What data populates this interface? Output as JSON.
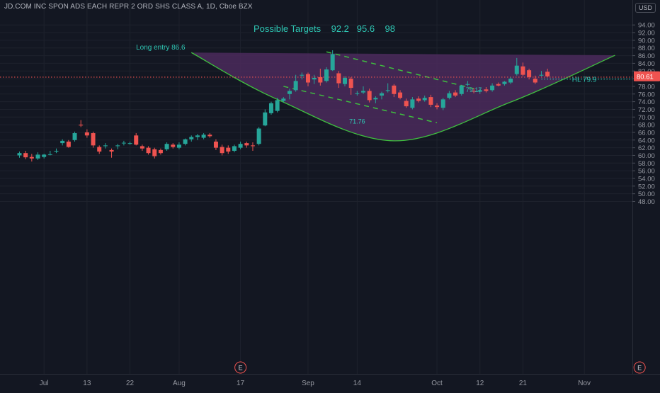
{
  "header": {
    "symbol_title": "JD.COM INC SPON ADS EACH REPR 2 ORD SHS CLASS A, 1D, Cboe BZX",
    "currency": "USD"
  },
  "colors": {
    "background": "#131722",
    "up": "#26a69a",
    "down": "#ef5350",
    "curve": "#3fbf3f",
    "fill": "#4b2a5c",
    "annotation": "#2ec7b4",
    "price_line": "#ef5350"
  },
  "chart_data": {
    "type": "candlestick",
    "title": "Possible Targets    92.2   95.6    98",
    "ylim": [
      47,
      97
    ],
    "y_ticks": [
      48,
      50,
      52,
      54,
      56,
      58,
      60,
      62,
      64,
      66,
      68,
      70,
      72,
      74,
      76,
      78,
      80,
      82,
      84,
      86,
      88,
      90,
      92,
      94
    ],
    "y_tick_labels": [
      "48.00",
      "50.00",
      "52.00",
      "54.00",
      "56.00",
      "58.00",
      "60.00",
      "62.00",
      "64.00",
      "66.00",
      "68.00",
      "70.00",
      "72.00",
      "74.00",
      "76.00",
      "78.00",
      "80.00",
      "82.00",
      "84.00",
      "86.00",
      "88.00",
      "90.00",
      "92.00",
      "94.00"
    ],
    "x_ticks": [
      {
        "label": "Jul",
        "date": "2020-07-01"
      },
      {
        "label": "13",
        "date": "2020-07-13"
      },
      {
        "label": "22",
        "date": "2020-07-22"
      },
      {
        "label": "Aug",
        "date": "2020-08-03"
      },
      {
        "label": "17",
        "date": "2020-08-17"
      },
      {
        "label": "Sep",
        "date": "2020-09-01"
      },
      {
        "label": "14",
        "date": "2020-09-14"
      },
      {
        "label": "Oct",
        "date": "2020-10-01"
      },
      {
        "label": "12",
        "date": "2020-10-12"
      },
      {
        "label": "21",
        "date": "2020-10-21"
      },
      {
        "label": "Nov",
        "date": "2020-11-02"
      }
    ],
    "candles": [
      {
        "date": "2020-06-25",
        "o": 60.0,
        "h": 61.0,
        "l": 59.4,
        "c": 60.6
      },
      {
        "date": "2020-06-26",
        "o": 60.6,
        "h": 61.2,
        "l": 59.0,
        "c": 59.5
      },
      {
        "date": "2020-06-29",
        "o": 59.6,
        "h": 60.4,
        "l": 58.4,
        "c": 59.2
      },
      {
        "date": "2020-06-30",
        "o": 59.2,
        "h": 60.8,
        "l": 58.8,
        "c": 60.2
      },
      {
        "date": "2020-07-01",
        "o": 59.6,
        "h": 60.4,
        "l": 59.2,
        "c": 60.2
      },
      {
        "date": "2020-07-02",
        "o": 60.2,
        "h": 61.2,
        "l": 60.0,
        "c": 60.3
      },
      {
        "date": "2020-07-06",
        "o": 61.0,
        "h": 61.8,
        "l": 60.6,
        "c": 61.2
      },
      {
        "date": "2020-07-07",
        "o": 63.2,
        "h": 64.2,
        "l": 62.6,
        "c": 63.8
      },
      {
        "date": "2020-07-08",
        "o": 63.6,
        "h": 64.0,
        "l": 62.0,
        "c": 62.2
      },
      {
        "date": "2020-07-09",
        "o": 64.0,
        "h": 66.2,
        "l": 63.6,
        "c": 65.8
      },
      {
        "date": "2020-07-10",
        "o": 68.0,
        "h": 69.2,
        "l": 67.4,
        "c": 67.8
      },
      {
        "date": "2020-07-13",
        "o": 66.0,
        "h": 66.8,
        "l": 64.6,
        "c": 65.2
      },
      {
        "date": "2020-07-14",
        "o": 65.8,
        "h": 66.2,
        "l": 62.0,
        "c": 62.6
      },
      {
        "date": "2020-07-15",
        "o": 62.2,
        "h": 62.6,
        "l": 60.4,
        "c": 61.0
      },
      {
        "date": "2020-07-16",
        "o": 62.4,
        "h": 63.2,
        "l": 61.8,
        "c": 62.6
      },
      {
        "date": "2020-07-17",
        "o": 61.4,
        "h": 61.8,
        "l": 59.4,
        "c": 61.0
      },
      {
        "date": "2020-07-20",
        "o": 62.4,
        "h": 63.0,
        "l": 61.6,
        "c": 62.6
      },
      {
        "date": "2020-07-21",
        "o": 63.2,
        "h": 63.8,
        "l": 62.6,
        "c": 63.3
      },
      {
        "date": "2020-07-22",
        "o": 63.0,
        "h": 63.6,
        "l": 62.8,
        "c": 63.2
      },
      {
        "date": "2020-07-23",
        "o": 65.2,
        "h": 65.8,
        "l": 62.6,
        "c": 62.8
      },
      {
        "date": "2020-07-24",
        "o": 62.4,
        "h": 62.8,
        "l": 61.2,
        "c": 61.8
      },
      {
        "date": "2020-07-27",
        "o": 62.0,
        "h": 62.4,
        "l": 60.2,
        "c": 60.6
      },
      {
        "date": "2020-07-28",
        "o": 61.6,
        "h": 62.0,
        "l": 59.2,
        "c": 59.8
      },
      {
        "date": "2020-07-29",
        "o": 61.4,
        "h": 61.8,
        "l": 60.2,
        "c": 60.6
      },
      {
        "date": "2020-07-30",
        "o": 61.6,
        "h": 63.4,
        "l": 61.2,
        "c": 63.0
      },
      {
        "date": "2020-07-31",
        "o": 62.8,
        "h": 63.2,
        "l": 61.8,
        "c": 62.2
      },
      {
        "date": "2020-08-03",
        "o": 62.0,
        "h": 63.4,
        "l": 61.6,
        "c": 62.8
      },
      {
        "date": "2020-08-04",
        "o": 63.0,
        "h": 64.4,
        "l": 62.6,
        "c": 64.2
      },
      {
        "date": "2020-08-05",
        "o": 64.2,
        "h": 65.2,
        "l": 63.6,
        "c": 64.8
      },
      {
        "date": "2020-08-06",
        "o": 64.8,
        "h": 65.6,
        "l": 64.0,
        "c": 65.2
      },
      {
        "date": "2020-08-07",
        "o": 64.6,
        "h": 65.8,
        "l": 64.2,
        "c": 65.4
      },
      {
        "date": "2020-08-10",
        "o": 65.4,
        "h": 65.8,
        "l": 64.6,
        "c": 65.0
      },
      {
        "date": "2020-08-11",
        "o": 63.6,
        "h": 64.2,
        "l": 61.4,
        "c": 62.0
      },
      {
        "date": "2020-08-12",
        "o": 62.2,
        "h": 62.8,
        "l": 60.0,
        "c": 60.6
      },
      {
        "date": "2020-08-13",
        "o": 62.0,
        "h": 62.6,
        "l": 60.4,
        "c": 61.0
      },
      {
        "date": "2020-08-14",
        "o": 61.2,
        "h": 62.8,
        "l": 60.8,
        "c": 62.4
      },
      {
        "date": "2020-08-17",
        "o": 62.0,
        "h": 63.6,
        "l": 61.6,
        "c": 63.0
      },
      {
        "date": "2020-08-18",
        "o": 63.2,
        "h": 63.6,
        "l": 62.0,
        "c": 62.6
      },
      {
        "date": "2020-08-19",
        "o": 62.6,
        "h": 63.4,
        "l": 61.2,
        "c": 62.4
      },
      {
        "date": "2020-08-20",
        "o": 63.0,
        "h": 67.4,
        "l": 62.6,
        "c": 67.0
      },
      {
        "date": "2020-08-21",
        "o": 67.8,
        "h": 72.0,
        "l": 67.6,
        "c": 71.2
      },
      {
        "date": "2020-08-24",
        "o": 71.0,
        "h": 74.0,
        "l": 70.6,
        "c": 73.6
      },
      {
        "date": "2020-08-25",
        "o": 71.6,
        "h": 75.0,
        "l": 71.2,
        "c": 74.4
      },
      {
        "date": "2020-08-26",
        "o": 74.2,
        "h": 75.2,
        "l": 73.8,
        "c": 74.8
      },
      {
        "date": "2020-08-27",
        "o": 76.0,
        "h": 77.4,
        "l": 74.6,
        "c": 76.8
      },
      {
        "date": "2020-08-28",
        "o": 77.0,
        "h": 81.0,
        "l": 76.6,
        "c": 79.4
      },
      {
        "date": "2020-08-31",
        "o": 80.8,
        "h": 81.6,
        "l": 79.8,
        "c": 81.0
      },
      {
        "date": "2020-09-01",
        "o": 81.2,
        "h": 81.6,
        "l": 78.0,
        "c": 79.0
      },
      {
        "date": "2020-09-02",
        "o": 79.8,
        "h": 81.0,
        "l": 78.6,
        "c": 80.2
      },
      {
        "date": "2020-09-03",
        "o": 80.4,
        "h": 82.6,
        "l": 78.2,
        "c": 79.0
      },
      {
        "date": "2020-09-04",
        "o": 79.4,
        "h": 83.0,
        "l": 79.0,
        "c": 82.4
      },
      {
        "date": "2020-09-08",
        "o": 82.2,
        "h": 87.4,
        "l": 82.0,
        "c": 86.4
      },
      {
        "date": "2020-09-09",
        "o": 81.4,
        "h": 82.0,
        "l": 77.6,
        "c": 78.8
      },
      {
        "date": "2020-09-10",
        "o": 78.6,
        "h": 80.6,
        "l": 78.0,
        "c": 80.2
      },
      {
        "date": "2020-09-11",
        "o": 80.0,
        "h": 80.4,
        "l": 75.8,
        "c": 77.6
      },
      {
        "date": "2020-09-14",
        "o": 76.0,
        "h": 76.8,
        "l": 75.6,
        "c": 76.2
      },
      {
        "date": "2020-09-15",
        "o": 76.4,
        "h": 78.0,
        "l": 76.0,
        "c": 76.8
      },
      {
        "date": "2020-09-16",
        "o": 76.8,
        "h": 77.4,
        "l": 73.8,
        "c": 74.4
      },
      {
        "date": "2020-09-17",
        "o": 74.6,
        "h": 75.4,
        "l": 73.6,
        "c": 75.0
      },
      {
        "date": "2020-09-18",
        "o": 75.6,
        "h": 76.6,
        "l": 74.6,
        "c": 76.2
      },
      {
        "date": "2020-09-21",
        "o": 76.8,
        "h": 78.8,
        "l": 76.4,
        "c": 77.0
      },
      {
        "date": "2020-09-22",
        "o": 78.2,
        "h": 78.6,
        "l": 75.2,
        "c": 76.0
      },
      {
        "date": "2020-09-23",
        "o": 76.4,
        "h": 77.0,
        "l": 74.6,
        "c": 75.0
      },
      {
        "date": "2020-09-24",
        "o": 74.2,
        "h": 74.8,
        "l": 72.4,
        "c": 72.8
      },
      {
        "date": "2020-09-25",
        "o": 72.4,
        "h": 75.2,
        "l": 72.0,
        "c": 74.6
      },
      {
        "date": "2020-09-28",
        "o": 74.8,
        "h": 75.4,
        "l": 73.8,
        "c": 74.2
      },
      {
        "date": "2020-09-29",
        "o": 74.4,
        "h": 75.6,
        "l": 74.0,
        "c": 75.0
      },
      {
        "date": "2020-09-30",
        "o": 75.2,
        "h": 75.8,
        "l": 72.6,
        "c": 73.2
      },
      {
        "date": "2020-10-01",
        "o": 73.0,
        "h": 73.6,
        "l": 72.0,
        "c": 72.6
      },
      {
        "date": "2020-10-02",
        "o": 72.4,
        "h": 75.0,
        "l": 71.8,
        "c": 74.6
      },
      {
        "date": "2020-10-05",
        "o": 75.0,
        "h": 76.8,
        "l": 74.6,
        "c": 76.2
      },
      {
        "date": "2020-10-06",
        "o": 76.4,
        "h": 77.0,
        "l": 75.2,
        "c": 75.6
      },
      {
        "date": "2020-10-07",
        "o": 76.0,
        "h": 78.4,
        "l": 75.6,
        "c": 78.2
      },
      {
        "date": "2020-10-08",
        "o": 78.4,
        "h": 79.4,
        "l": 78.0,
        "c": 78.6
      },
      {
        "date": "2020-10-09",
        "o": 76.8,
        "h": 77.6,
        "l": 76.2,
        "c": 76.6
      },
      {
        "date": "2020-10-12",
        "o": 76.6,
        "h": 77.4,
        "l": 76.0,
        "c": 77.0
      },
      {
        "date": "2020-10-13",
        "o": 77.2,
        "h": 77.8,
        "l": 76.4,
        "c": 76.8
      },
      {
        "date": "2020-10-14",
        "o": 77.0,
        "h": 78.8,
        "l": 76.6,
        "c": 78.2
      },
      {
        "date": "2020-10-15",
        "o": 78.6,
        "h": 79.0,
        "l": 78.0,
        "c": 78.2
      },
      {
        "date": "2020-10-16",
        "o": 78.6,
        "h": 79.4,
        "l": 78.2,
        "c": 79.2
      },
      {
        "date": "2020-10-19",
        "o": 79.0,
        "h": 80.4,
        "l": 78.6,
        "c": 80.0
      },
      {
        "date": "2020-10-20",
        "o": 81.2,
        "h": 85.4,
        "l": 80.8,
        "c": 83.4
      },
      {
        "date": "2020-10-21",
        "o": 83.2,
        "h": 84.2,
        "l": 80.6,
        "c": 81.0
      },
      {
        "date": "2020-10-22",
        "o": 82.2,
        "h": 82.6,
        "l": 79.8,
        "c": 80.4
      },
      {
        "date": "2020-10-23",
        "o": 80.0,
        "h": 80.8,
        "l": 78.6,
        "c": 79.0
      },
      {
        "date": "2020-10-26",
        "o": 80.8,
        "h": 82.0,
        "l": 80.6,
        "c": 81.0
      },
      {
        "date": "2020-10-27",
        "o": 81.8,
        "h": 82.6,
        "l": 80.4,
        "c": 80.6
      }
    ],
    "bowl_curve": [
      {
        "date": "2020-08-05",
        "y": 86.8
      },
      {
        "date": "2020-08-25",
        "y": 74.6
      },
      {
        "date": "2020-09-22",
        "y": 63.8
      },
      {
        "date": "2020-10-19",
        "y": 73.9
      },
      {
        "date": "2020-11-09",
        "y": 86.1
      }
    ],
    "channel_upper": [
      {
        "date": "2020-09-04",
        "y": 87.0
      },
      {
        "date": "2020-10-09",
        "y": 77.4
      }
    ],
    "channel_lower": [
      {
        "date": "2020-08-26",
        "y": 78.0
      },
      {
        "date": "2020-10-01",
        "y": 68.5
      }
    ],
    "horizontal_lines": [
      {
        "y": 80.4,
        "style": "dotted",
        "color": "#ef5350"
      },
      {
        "y": 79.9,
        "style": "dotted",
        "color": "#2ec7b4",
        "from_date": "2020-10-26"
      }
    ],
    "annotations": [
      {
        "text": "Long entry 86.6",
        "date": "2020-08-04",
        "y": 87.6,
        "anchor": "end"
      },
      {
        "text": "HL 79.9",
        "date": "2020-10-29",
        "y": 79.2,
        "anchor": "start"
      },
      {
        "text": "79.17",
        "date": "2020-10-09",
        "y": 76.5,
        "anchor": "middle"
      },
      {
        "text": "71.76",
        "date": "2020-09-14",
        "y": 68.3,
        "anchor": "middle"
      }
    ],
    "current_price_label": "80.61",
    "event_markers": [
      {
        "label": "E",
        "date": "2020-08-17"
      },
      {
        "label": "E",
        "date": "2020-11-13"
      }
    ]
  }
}
